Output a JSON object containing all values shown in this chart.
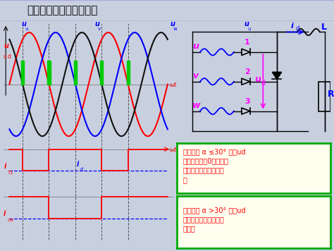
{
  "title": "电感性负载加续流二极管",
  "bg_color": "#c8d0e0",
  "title_bg": "#9090c0",
  "title_fg": "#000000",
  "waveform_bg": "#f0f0ff",
  "circuit_bg": "#f0f0ff",
  "text_box1_bg": "#fffff0",
  "text_box2_bg": "#fffff0",
  "text_box_border": "#00aa00",
  "text_box1": "电阻负载 α ≤30° 时，ud\n连续且均大于0，续流二\n极管承受反压而不起作\n用",
  "text_box2": "电阻负载 α >30° 时，ud\n断续，续流二极管起续\n流作用",
  "red": "#ff0000",
  "blue": "#0000ff",
  "black": "#111111",
  "green": "#00cc00",
  "magenta": "#ff00ff",
  "gray": "#888888",
  "dark_blue": "#0000cc"
}
